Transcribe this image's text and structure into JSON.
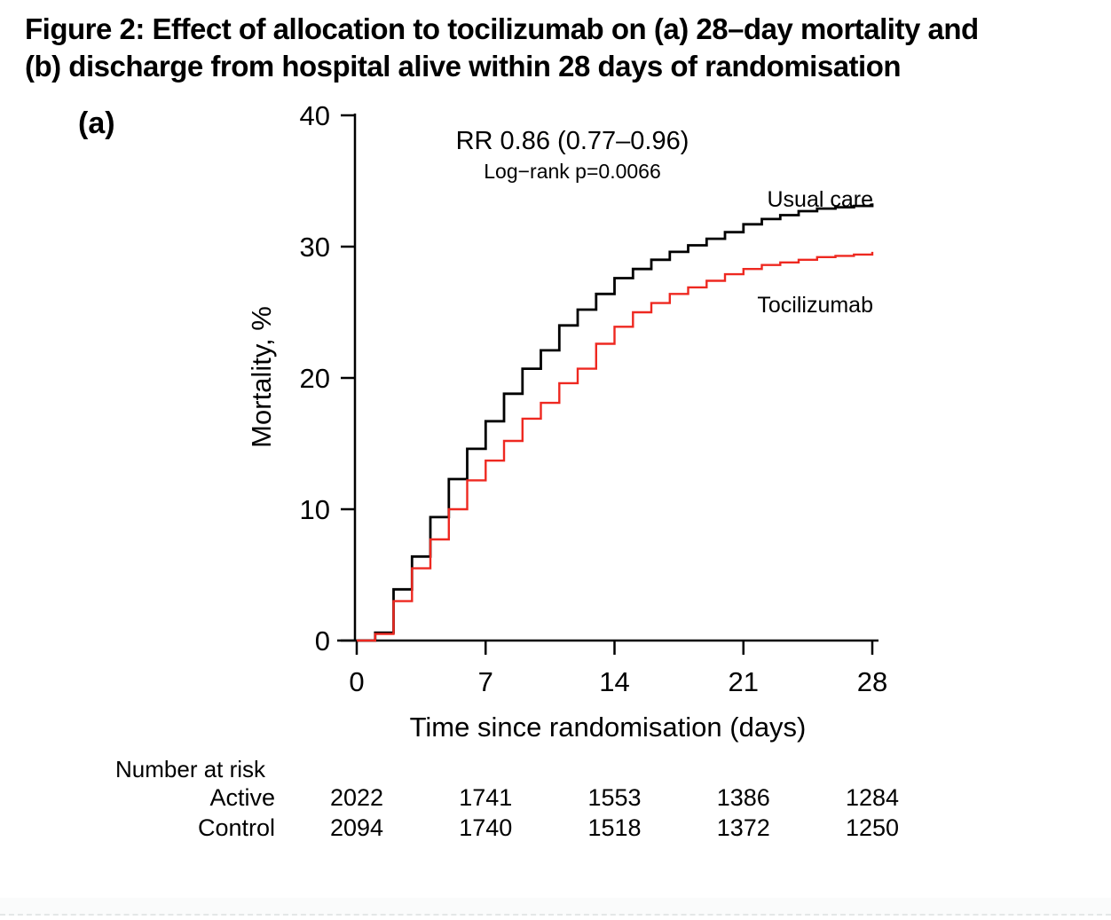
{
  "figure": {
    "title_line1": "Figure 2: Effect of allocation to tocilizumab on (a) 28–day mortality and",
    "title_line2": "(b) discharge from hospital alive within 28 days of randomisation",
    "panel_label": "(a)"
  },
  "annotation": {
    "rr": "RR 0.86 (0.77–0.96)",
    "logrank": "Log−rank p=0.0066"
  },
  "axes": {
    "xlabel": "Time since randomisation (days)",
    "ylabel": "Mortality, %"
  },
  "curve_labels": {
    "usual_care": "Usual care",
    "tocilizumab": "Tocilizumab"
  },
  "risk_table": {
    "header": "Number at risk",
    "rows": [
      {
        "label": "Active",
        "color": "#ee2820",
        "values": [
          "2022",
          "1741",
          "1553",
          "1386",
          "1284"
        ]
      },
      {
        "label": "Control",
        "color": "#000000",
        "values": [
          "2094",
          "1740",
          "1518",
          "1372",
          "1250"
        ]
      }
    ]
  },
  "colors": {
    "usual_care": "#000000",
    "tocilizumab": "#ee2820"
  },
  "chart_data": {
    "type": "line",
    "subtype": "step-cumulative-incidence",
    "title": "Figure 2: Effect of allocation to tocilizumab on (a) 28–day mortality and (b) discharge from hospital alive within 28 days of randomisation",
    "panel": "(a)",
    "xlabel": "Time since randomisation (days)",
    "ylabel": "Mortality, %",
    "xlim": [
      0,
      28
    ],
    "ylim": [
      0,
      40
    ],
    "xticks": [
      0,
      7,
      14,
      21,
      28
    ],
    "yticks": [
      0,
      10,
      20,
      30,
      40
    ],
    "grid": false,
    "legend_position": "inline-labels",
    "annotations": [
      "RR 0.86 (0.77–0.96)",
      "Log−rank p=0.0066"
    ],
    "x": [
      0,
      1,
      2,
      3,
      4,
      5,
      6,
      7,
      8,
      9,
      10,
      11,
      12,
      13,
      14,
      15,
      16,
      17,
      18,
      19,
      20,
      21,
      22,
      23,
      24,
      25,
      26,
      27,
      28
    ],
    "series": [
      {
        "name": "Usual care",
        "color": "#000000",
        "values": [
          0,
          0.6,
          3.9,
          6.4,
          9.4,
          12.3,
          14.6,
          16.7,
          18.8,
          20.7,
          22.1,
          24.0,
          25.2,
          26.4,
          27.6,
          28.3,
          29.0,
          29.6,
          30.1,
          30.6,
          31.1,
          31.7,
          32.1,
          32.4,
          32.7,
          32.9,
          33.0,
          33.1,
          33.3
        ]
      },
      {
        "name": "Tocilizumab",
        "color": "#ee2820",
        "values": [
          0,
          0.5,
          3.0,
          5.5,
          7.7,
          10.0,
          12.2,
          13.7,
          15.2,
          16.9,
          18.1,
          19.6,
          20.7,
          22.6,
          23.9,
          25.0,
          25.7,
          26.4,
          26.9,
          27.4,
          27.9,
          28.3,
          28.6,
          28.8,
          29.0,
          29.2,
          29.3,
          29.4,
          29.6
        ]
      }
    ],
    "number_at_risk": {
      "header": "Number at risk",
      "timepoints": [
        0,
        7,
        14,
        21,
        28
      ],
      "rows": [
        {
          "label": "Active",
          "values": [
            2022,
            1741,
            1553,
            1386,
            1284
          ]
        },
        {
          "label": "Control",
          "values": [
            2094,
            1740,
            1518,
            1372,
            1250
          ]
        }
      ]
    }
  }
}
